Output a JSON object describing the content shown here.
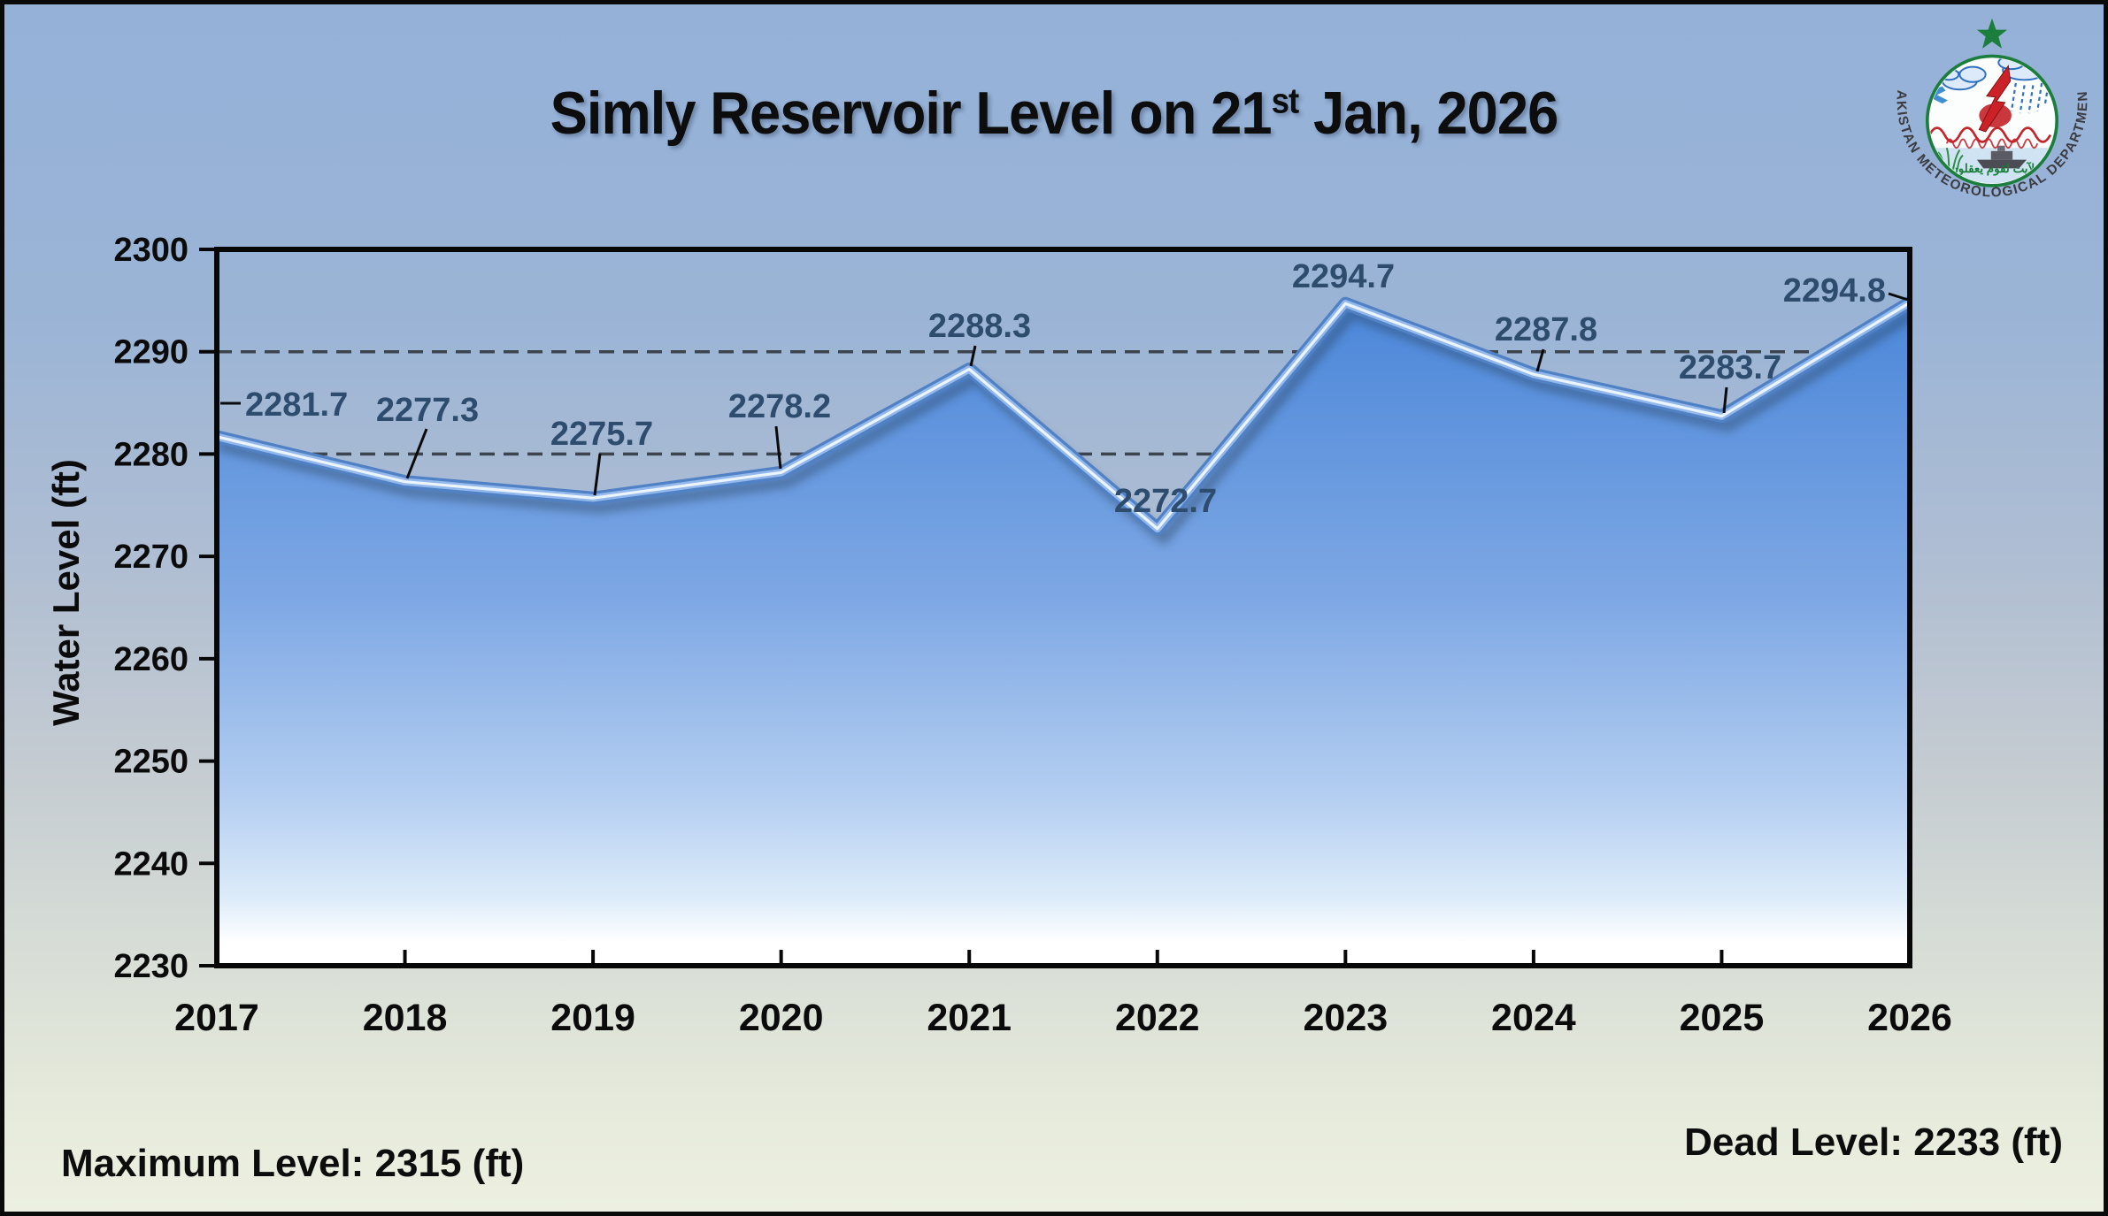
{
  "title": {
    "prefix": "Simly Reservoir Level on 21",
    "superscript": "st",
    "suffix": " Jan, 2026"
  },
  "logo": {
    "ring_text": "PAKISTAN METEOROLOGICAL DEPARTMENT",
    "arabic_text": "لآيت لقوم يعقلون"
  },
  "chart_data": {
    "type": "area",
    "title": "Simly Reservoir Level on 21st Jan, 2026",
    "x": [
      2017,
      2018,
      2019,
      2020,
      2021,
      2022,
      2023,
      2024,
      2025,
      2026
    ],
    "values": [
      2281.7,
      2277.3,
      2275.7,
      2278.2,
      2288.3,
      2272.7,
      2294.7,
      2287.8,
      2283.7,
      2294.8
    ],
    "xlabel": "",
    "ylabel": "Water Level (ft)",
    "ylim": [
      2230,
      2300
    ],
    "yticks": [
      2230,
      2240,
      2250,
      2260,
      2270,
      2280,
      2290,
      2300
    ],
    "gridlines": [
      2290,
      2280
    ],
    "grid": "horizontal dashed lines at 2280 and 2290 only",
    "legend": "none",
    "colors": {
      "area_top": "#4c87d9",
      "area_bottom": "#ffffff",
      "edge_highlight": "#ecf5fe",
      "data_label": "#2e4d6e",
      "gridline": "#3c444d",
      "background_top": "#95b1d8",
      "background_bottom": "#edf0e0"
    },
    "max_level_ft": 2315,
    "dead_level_ft": 2233
  },
  "footer": {
    "max_label": "Maximum Level: 2315 (ft)",
    "dead_label": "Dead Level: 2233 (ft)"
  }
}
